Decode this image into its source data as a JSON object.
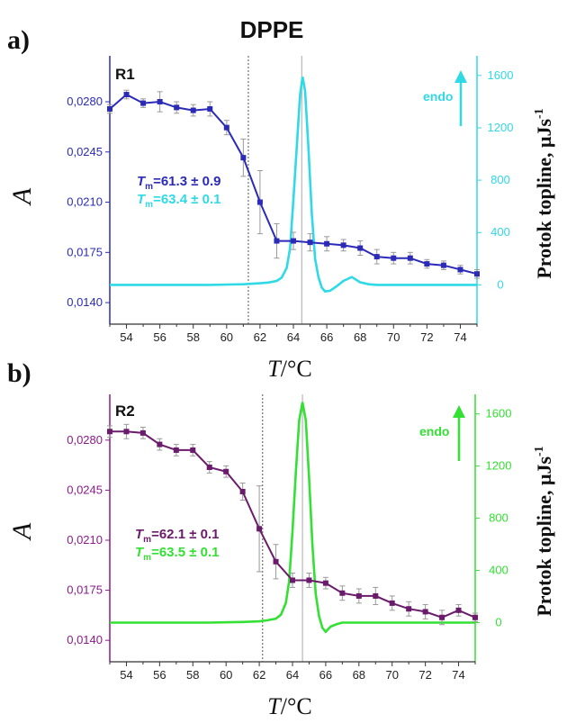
{
  "figure_title": "DPPE",
  "x_label": "/°C",
  "x_label_symbol": "T",
  "y_label": "A",
  "y2_label": "Protok topline, μJs",
  "y2_label_sup": "-1",
  "chart_data": [
    {
      "panel": "a)",
      "type": "line",
      "label": "R1",
      "endo_label": "endo",
      "tm_lines": [
        {
          "prefix": "T",
          "sub": "m",
          "text": "=61.3 ± 0.9"
        },
        {
          "prefix": "T",
          "sub": "m",
          "text": "=63.4 ± 0.1"
        }
      ],
      "xlim": [
        53,
        75
      ],
      "x_ticks": [
        "54",
        "56",
        "58",
        "60",
        "62",
        "64",
        "66",
        "68",
        "70",
        "72",
        "74"
      ],
      "ylim": [
        0.0125,
        0.0312
      ],
      "y_ticks": [
        "0,0140",
        "0,0175",
        "0,0210",
        "0,0245",
        "0,0280"
      ],
      "y_tick_values": [
        0.014,
        0.0175,
        0.021,
        0.0245,
        0.028
      ],
      "y2lim": [
        -300,
        1750
      ],
      "y2_ticks": [
        "0",
        "400",
        "800",
        "1200",
        "1600"
      ],
      "y2_tick_values": [
        0,
        400,
        800,
        1200,
        1600
      ],
      "colors": {
        "absorbance": "#2b2bb8",
        "dsc": "#2fd9e6",
        "axis_left": "#2b2bb8",
        "axis_right": "#2fd9e6"
      },
      "vlines": [
        61.3,
        64.5
      ],
      "absorbance": {
        "x": [
          53,
          54,
          55,
          56,
          57,
          58,
          59,
          60,
          61,
          62,
          63,
          64,
          65,
          66,
          67,
          68,
          69,
          70,
          71,
          72,
          73,
          74,
          75
        ],
        "y": [
          0.0275,
          0.0285,
          0.0279,
          0.028,
          0.0276,
          0.0274,
          0.0275,
          0.0262,
          0.0241,
          0.021,
          0.0183,
          0.0183,
          0.0182,
          0.0181,
          0.018,
          0.0178,
          0.0172,
          0.0171,
          0.0171,
          0.0167,
          0.0166,
          0.0163,
          0.016
        ],
        "err": [
          0.0003,
          0.0003,
          0.0003,
          0.0007,
          0.0004,
          0.0004,
          0.0005,
          0.0005,
          0.0013,
          0.0022,
          0.0012,
          0.0006,
          0.0006,
          0.0005,
          0.0004,
          0.0005,
          0.0005,
          0.0004,
          0.0004,
          0.0003,
          0.0003,
          0.0003,
          0.0003
        ]
      },
      "dsc": {
        "x": [
          53,
          55,
          57,
          59,
          61,
          62,
          62.5,
          63,
          63.3,
          63.6,
          63.8,
          64,
          64.2,
          64.4,
          64.55,
          64.7,
          64.9,
          65.1,
          65.3,
          65.5,
          65.7,
          65.9,
          66.2,
          66.6,
          67,
          67.5,
          68,
          68.5,
          69,
          70,
          72,
          75
        ],
        "y": [
          0,
          0,
          0,
          0,
          5,
          12,
          18,
          30,
          55,
          130,
          280,
          650,
          1050,
          1450,
          1590,
          1480,
          1050,
          550,
          200,
          60,
          -20,
          -50,
          -45,
          -10,
          30,
          60,
          20,
          5,
          0,
          0,
          0,
          0
        ]
      }
    },
    {
      "panel": "b)",
      "type": "line",
      "label": "R2",
      "endo_label": "endo",
      "tm_lines": [
        {
          "prefix": "T",
          "sub": "m",
          "text": "=62.1 ± 0.1"
        },
        {
          "prefix": "T",
          "sub": "m",
          "text": "=63.5 ± 0.1"
        }
      ],
      "xlim": [
        53,
        75
      ],
      "x_ticks": [
        "54",
        "56",
        "58",
        "60",
        "62",
        "64",
        "66",
        "68",
        "70",
        "72",
        "74"
      ],
      "ylim": [
        0.0125,
        0.0312
      ],
      "y_ticks": [
        "0,0140",
        "0,0175",
        "0,0210",
        "0,0245",
        "0,0280"
      ],
      "y_tick_values": [
        0.014,
        0.0175,
        0.021,
        0.0245,
        0.028
      ],
      "y2lim": [
        -300,
        1750
      ],
      "y2_ticks": [
        "0",
        "400",
        "800",
        "1200",
        "1600"
      ],
      "y2_tick_values": [
        0,
        400,
        800,
        1200,
        1600
      ],
      "colors": {
        "absorbance": "#6b1b6b",
        "dsc": "#33e033",
        "axis_left": "#8b1a8b",
        "axis_right": "#33e033"
      },
      "vlines": [
        62.2,
        64.6
      ],
      "absorbance": {
        "x": [
          53,
          54,
          55,
          56,
          57,
          58,
          59,
          60,
          61,
          62,
          63,
          64,
          65,
          66,
          67,
          68,
          69,
          70,
          71,
          72,
          73,
          74,
          75
        ],
        "y": [
          0.0286,
          0.0286,
          0.0285,
          0.0277,
          0.0273,
          0.0273,
          0.0261,
          0.0258,
          0.0244,
          0.0218,
          0.0195,
          0.0182,
          0.0182,
          0.018,
          0.0173,
          0.0171,
          0.0171,
          0.0166,
          0.0162,
          0.016,
          0.0156,
          0.0161,
          0.0156
        ],
        "err": [
          0.0004,
          0.0005,
          0.0004,
          0.0004,
          0.0004,
          0.0004,
          0.0004,
          0.0004,
          0.0006,
          0.003,
          0.0012,
          0.0005,
          0.0005,
          0.0004,
          0.0005,
          0.0005,
          0.0006,
          0.0005,
          0.0005,
          0.0005,
          0.0005,
          0.0004,
          0.0003
        ]
      },
      "dsc": {
        "x": [
          53,
          55,
          57,
          59,
          61,
          62,
          62.5,
          63,
          63.3,
          63.6,
          63.8,
          64,
          64.2,
          64.4,
          64.6,
          64.8,
          65,
          65.2,
          65.4,
          65.6,
          65.8,
          66,
          66.3,
          66.7,
          67,
          68,
          70,
          72,
          75
        ],
        "y": [
          0,
          0,
          0,
          0,
          5,
          10,
          18,
          30,
          60,
          150,
          320,
          700,
          1150,
          1550,
          1690,
          1550,
          1100,
          600,
          220,
          50,
          -40,
          -70,
          -30,
          -10,
          0,
          0,
          0,
          0,
          0
        ]
      }
    }
  ]
}
